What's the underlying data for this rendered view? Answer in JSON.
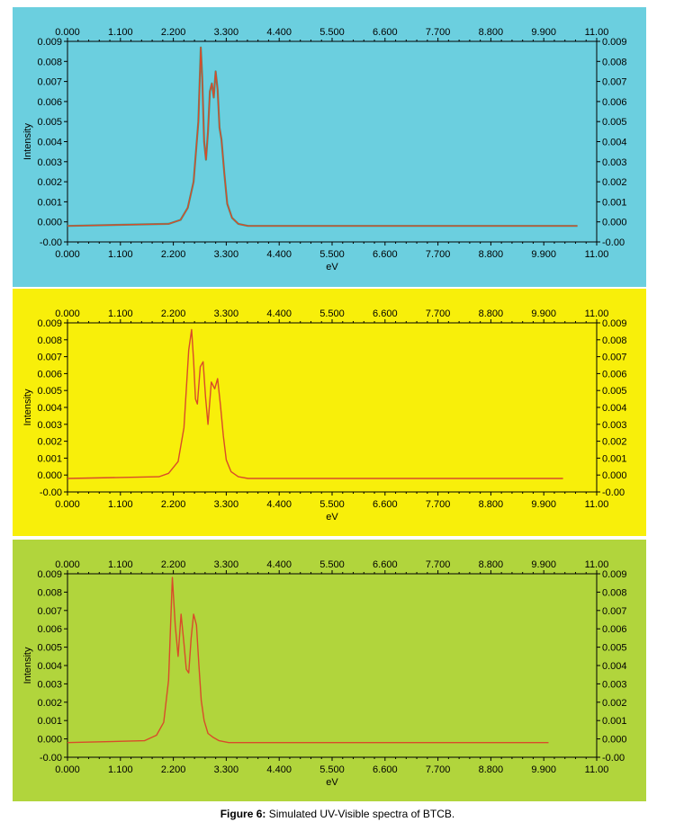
{
  "figure": {
    "caption_bold": "Figure 6:",
    "caption_text": " Simulated UV-Visible spectra of BTCB."
  },
  "chart_data": [
    {
      "type": "line",
      "background": "#6bcfdf",
      "line_color": "#d94b2a",
      "line_color_2": "#2fa28a",
      "xlabel": "eV",
      "ylabel": "Intensity",
      "xlim": [
        0,
        11
      ],
      "ylim": [
        -0.001,
        0.009
      ],
      "x_ticks": [
        "0.000",
        "1.100",
        "2.200",
        "3.300",
        "4.400",
        "5.500",
        "6.600",
        "7.700",
        "8.800",
        "9.900",
        "11.00"
      ],
      "y_ticks": [
        "-0.00",
        "0.000",
        "0.001",
        "0.002",
        "0.003",
        "0.004",
        "0.005",
        "0.006",
        "0.007",
        "0.008",
        "0.009"
      ],
      "x_range": [
        0,
        10.6
      ],
      "baseline": -0.0002,
      "series": [
        {
          "x": [
            0,
            2.1,
            2.35,
            2.5,
            2.62,
            2.72,
            2.77,
            2.8,
            2.84,
            2.88,
            2.92,
            2.96,
            3.0,
            3.04,
            3.08,
            3.12,
            3.16,
            3.2,
            3.26,
            3.32,
            3.42,
            3.55,
            3.75,
            4.2,
            10.6
          ],
          "y": [
            -0.0002,
            -0.0001,
            0.0001,
            0.0007,
            0.002,
            0.005,
            0.0087,
            0.0072,
            0.004,
            0.0031,
            0.0045,
            0.0065,
            0.0069,
            0.0062,
            0.0075,
            0.0066,
            0.0047,
            0.0041,
            0.0024,
            0.0009,
            0.0002,
            -0.0001,
            -0.0002,
            -0.0002,
            -0.0002
          ]
        }
      ]
    },
    {
      "type": "line",
      "background": "#f8ef0a",
      "line_color": "#d94b2a",
      "xlabel": "eV",
      "ylabel": "Intensity",
      "xlim": [
        0,
        11
      ],
      "ylim": [
        -0.001,
        0.009
      ],
      "x_ticks": [
        "0.000",
        "1.100",
        "2.200",
        "3.300",
        "4.400",
        "5.500",
        "6.600",
        "7.700",
        "8.800",
        "9.900",
        "11.00"
      ],
      "y_ticks": [
        "-0.00",
        "0.000",
        "0.001",
        "0.002",
        "0.003",
        "0.004",
        "0.005",
        "0.006",
        "0.007",
        "0.008",
        "0.009"
      ],
      "x_range": [
        0,
        10.3
      ],
      "baseline": -0.0002,
      "series": [
        {
          "x": [
            0,
            1.9,
            2.1,
            2.3,
            2.42,
            2.52,
            2.58,
            2.62,
            2.66,
            2.7,
            2.76,
            2.82,
            2.87,
            2.92,
            2.99,
            3.06,
            3.12,
            3.18,
            3.24,
            3.3,
            3.4,
            3.55,
            3.75,
            4.2,
            10.3
          ],
          "y": [
            -0.0002,
            -0.0001,
            0.0001,
            0.0008,
            0.0028,
            0.0074,
            0.0086,
            0.0068,
            0.0045,
            0.0042,
            0.0064,
            0.0067,
            0.0046,
            0.003,
            0.0055,
            0.0051,
            0.0057,
            0.0041,
            0.0023,
            0.0009,
            0.0002,
            -0.0001,
            -0.0002,
            -0.0002,
            -0.0002
          ]
        }
      ]
    },
    {
      "type": "line",
      "background": "#b1d53c",
      "line_color": "#d94b2a",
      "xlabel": "eV",
      "ylabel": "Intensity",
      "xlim": [
        0,
        11
      ],
      "ylim": [
        -0.001,
        0.009
      ],
      "x_ticks": [
        "0.000",
        "1.100",
        "2.200",
        "3.300",
        "4.400",
        "5.500",
        "6.600",
        "7.700",
        "8.800",
        "9.900",
        "11.00"
      ],
      "y_ticks": [
        "-0.00",
        "0.000",
        "0.001",
        "0.002",
        "0.003",
        "0.004",
        "0.005",
        "0.006",
        "0.007",
        "0.008",
        "0.009"
      ],
      "x_range": [
        0,
        10.0
      ],
      "baseline": -0.0002,
      "series": [
        {
          "x": [
            0,
            1.6,
            1.85,
            2.0,
            2.1,
            2.18,
            2.24,
            2.3,
            2.36,
            2.42,
            2.47,
            2.52,
            2.57,
            2.62,
            2.68,
            2.73,
            2.78,
            2.84,
            2.92,
            3.02,
            3.15,
            3.35,
            3.6,
            10.0
          ],
          "y": [
            -0.0002,
            -0.0001,
            0.0002,
            0.0009,
            0.0032,
            0.0088,
            0.0062,
            0.0045,
            0.0068,
            0.0052,
            0.0038,
            0.0036,
            0.0055,
            0.0068,
            0.0062,
            0.0041,
            0.0021,
            0.001,
            0.0003,
            0.0001,
            -0.0001,
            -0.0002,
            -0.0002,
            -0.0002
          ]
        }
      ]
    }
  ]
}
